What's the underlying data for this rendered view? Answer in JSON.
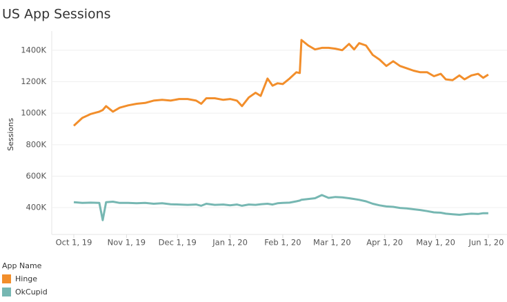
{
  "chart_data": {
    "type": "line",
    "title": "US App Sessions",
    "y_label": "Sessions",
    "legend_title": "App Name",
    "legend_position": "bottom-left",
    "grid": true,
    "x": [
      "2019-10-01",
      "2019-10-06",
      "2019-10-11",
      "2019-10-16",
      "2019-10-18",
      "2019-10-20",
      "2019-10-24",
      "2019-10-28",
      "2019-11-02",
      "2019-11-07",
      "2019-11-12",
      "2019-11-17",
      "2019-11-22",
      "2019-11-27",
      "2019-12-02",
      "2019-12-07",
      "2019-12-12",
      "2019-12-15",
      "2019-12-18",
      "2019-12-23",
      "2019-12-28",
      "2020-01-01",
      "2020-01-05",
      "2020-01-08",
      "2020-01-12",
      "2020-01-16",
      "2020-01-19",
      "2020-01-23",
      "2020-01-26",
      "2020-01-29",
      "2020-02-01",
      "2020-02-05",
      "2020-02-09",
      "2020-02-11",
      "2020-02-12",
      "2020-02-16",
      "2020-02-20",
      "2020-02-24",
      "2020-02-28",
      "2020-03-03",
      "2020-03-07",
      "2020-03-11",
      "2020-03-14",
      "2020-03-17",
      "2020-03-21",
      "2020-03-25",
      "2020-03-29",
      "2020-04-02",
      "2020-04-06",
      "2020-04-10",
      "2020-04-14",
      "2020-04-18",
      "2020-04-22",
      "2020-04-26",
      "2020-04-30",
      "2020-05-04",
      "2020-05-07",
      "2020-05-11",
      "2020-05-15",
      "2020-05-18",
      "2020-05-22",
      "2020-05-26",
      "2020-05-29",
      "2020-06-01"
    ],
    "series": [
      {
        "name": "Hinge",
        "color": "#f28e2b",
        "values": [
          920000,
          970000,
          995000,
          1010000,
          1020000,
          1045000,
          1010000,
          1035000,
          1050000,
          1060000,
          1065000,
          1080000,
          1085000,
          1080000,
          1090000,
          1090000,
          1080000,
          1060000,
          1095000,
          1095000,
          1085000,
          1090000,
          1080000,
          1045000,
          1100000,
          1130000,
          1110000,
          1220000,
          1175000,
          1190000,
          1185000,
          1220000,
          1260000,
          1255000,
          1465000,
          1430000,
          1405000,
          1415000,
          1415000,
          1410000,
          1400000,
          1440000,
          1405000,
          1445000,
          1430000,
          1370000,
          1340000,
          1300000,
          1330000,
          1300000,
          1285000,
          1270000,
          1260000,
          1260000,
          1235000,
          1250000,
          1215000,
          1210000,
          1240000,
          1215000,
          1240000,
          1250000,
          1225000,
          1245000
        ]
      },
      {
        "name": "OkCupid",
        "color": "#76b7b2",
        "values": [
          435000,
          430000,
          432000,
          430000,
          320000,
          435000,
          438000,
          430000,
          430000,
          428000,
          430000,
          425000,
          428000,
          422000,
          420000,
          418000,
          420000,
          412000,
          425000,
          418000,
          420000,
          415000,
          420000,
          412000,
          420000,
          418000,
          422000,
          425000,
          420000,
          428000,
          430000,
          432000,
          440000,
          445000,
          450000,
          455000,
          460000,
          480000,
          462000,
          468000,
          465000,
          460000,
          455000,
          450000,
          440000,
          425000,
          415000,
          408000,
          405000,
          398000,
          395000,
          390000,
          385000,
          378000,
          370000,
          368000,
          362000,
          358000,
          355000,
          358000,
          362000,
          360000,
          365000,
          365000
        ]
      }
    ],
    "xlim": [
      "2019-09-18",
      "2020-06-12"
    ],
    "xticks": [
      {
        "value": "2019-10-01",
        "label": "Oct 1, 19"
      },
      {
        "value": "2019-11-01",
        "label": "Nov 1, 19"
      },
      {
        "value": "2019-12-01",
        "label": "Dec 1, 19"
      },
      {
        "value": "2020-01-01",
        "label": "Jan 1, 20"
      },
      {
        "value": "2020-02-01",
        "label": "Feb 1, 20"
      },
      {
        "value": "2020-03-01",
        "label": "Mar 1, 20"
      },
      {
        "value": "2020-04-01",
        "label": "Apr 1, 20"
      },
      {
        "value": "2020-05-01",
        "label": "May 1, 20"
      },
      {
        "value": "2020-06-01",
        "label": "Jun 1, 20"
      }
    ],
    "ylim": [
      230000,
      1500000
    ],
    "yticks": [
      {
        "value": 400000,
        "label": "400K"
      },
      {
        "value": 600000,
        "label": "600K"
      },
      {
        "value": 800000,
        "label": "800K"
      },
      {
        "value": 1000000,
        "label": "1000K"
      },
      {
        "value": 1200000,
        "label": "1200K"
      },
      {
        "value": 1400000,
        "label": "1400K"
      }
    ]
  }
}
